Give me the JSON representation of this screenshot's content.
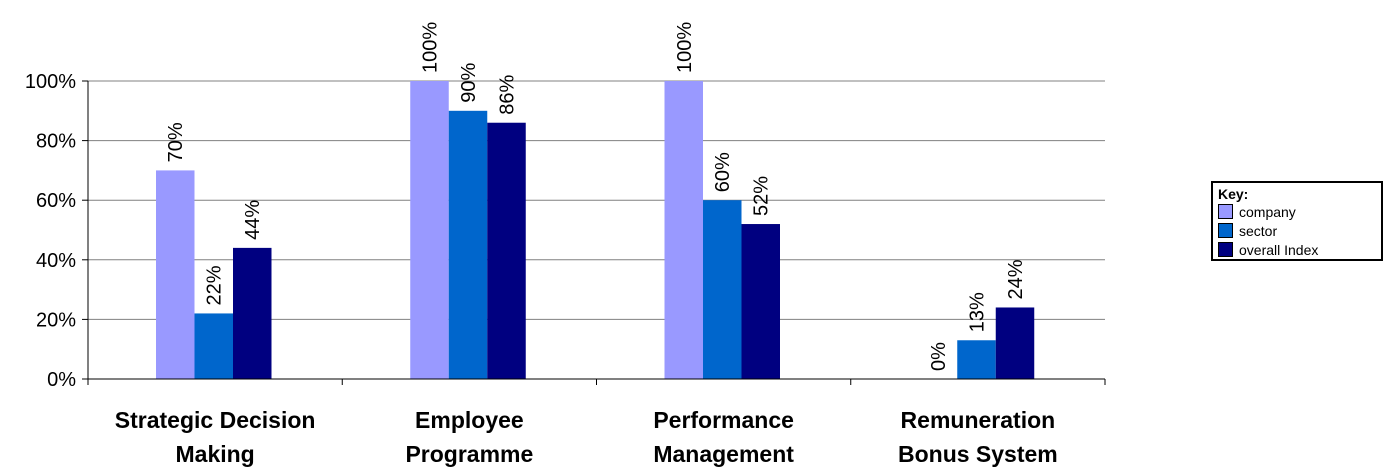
{
  "chart_data": {
    "type": "bar",
    "categories": [
      [
        "Strategic Decision",
        "Making"
      ],
      [
        "Employee",
        "Programme"
      ],
      [
        "Performance",
        "Management"
      ],
      [
        "Remuneration",
        "Bonus System"
      ]
    ],
    "series": [
      {
        "name": "company",
        "color": "#9999ff",
        "values": [
          70,
          100,
          100,
          0
        ],
        "labels": [
          "70%",
          "100%",
          "100%",
          "0%"
        ]
      },
      {
        "name": "sector",
        "color": "#0066cc",
        "values": [
          22,
          90,
          60,
          13
        ],
        "labels": [
          "22%",
          "90%",
          "60%",
          "13%"
        ]
      },
      {
        "name": "overall Index",
        "color": "#000080",
        "values": [
          44,
          86,
          52,
          24
        ],
        "labels": [
          "44%",
          "86%",
          "52%",
          "24%"
        ]
      }
    ],
    "ylim": [
      0,
      100
    ],
    "yticks": [
      "0%",
      "20%",
      "40%",
      "60%",
      "80%",
      "100%"
    ],
    "grid": true,
    "legend": {
      "title": "Key:",
      "placement": "right"
    }
  }
}
